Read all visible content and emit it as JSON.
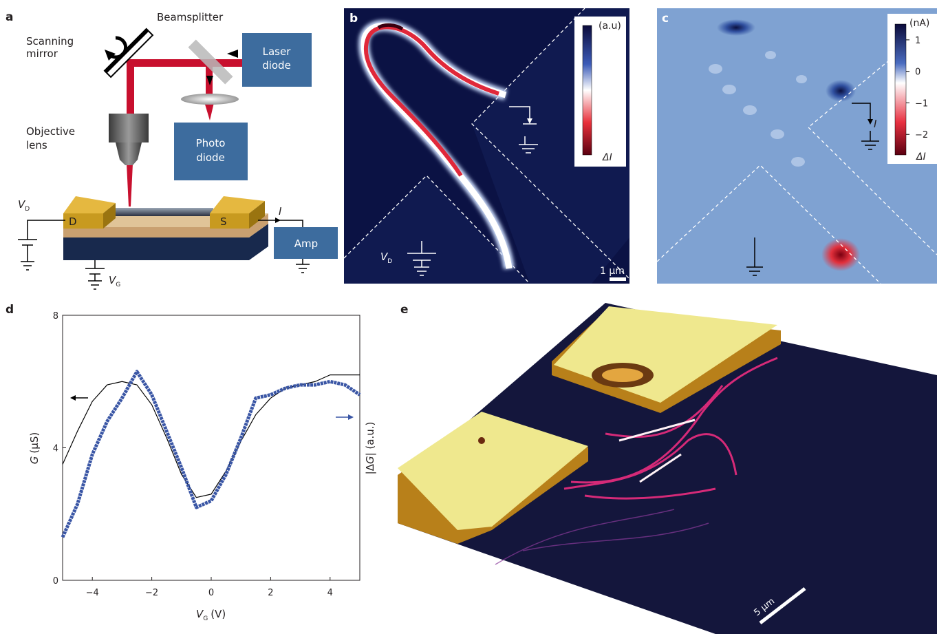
{
  "panel_a": {
    "label": "a",
    "scanning_mirror": [
      "Scanning",
      "mirror"
    ],
    "beamsplitter": "Beamsplitter",
    "laser_diode": [
      "Laser",
      "diode"
    ],
    "photo_diode": [
      "Photo",
      "diode"
    ],
    "objective_lens": [
      "Objective",
      "lens"
    ],
    "drain_voltage": {
      "symbol": "V",
      "sub": "D"
    },
    "drain": "D",
    "source": "S",
    "current": "I",
    "amp": "Amp",
    "gate_voltage": {
      "symbol": "V",
      "sub": "G"
    }
  },
  "panel_b": {
    "label": "b",
    "colorbar_unit": "(a.u)",
    "colorbar_quantity": "ΔI",
    "drain_voltage": {
      "symbol": "V",
      "sub": "D"
    },
    "scale_bar": "1 µm"
  },
  "panel_c": {
    "label": "c",
    "colorbar_unit": "(nA)",
    "colorbar_range": [
      -2.65,
      1.5
    ],
    "colorbar_ticks": [
      1,
      0,
      {
        "value": -1,
        "label": "−1"
      },
      {
        "value": -2,
        "label": "−2"
      }
    ],
    "current": "I",
    "colorbar_quantity": "ΔI"
  },
  "chart_data": {
    "type": "line",
    "panel_label": "d",
    "xlabel": {
      "symbol": "V",
      "sub": "G",
      "unit": "(V)"
    },
    "ylabel": {
      "symbol": "G",
      "unit": "(µS)"
    },
    "y2label": {
      "pre": "|Δ",
      "symbol": "G",
      "post": "| (a.u.)"
    },
    "x": [
      -5,
      -4.5,
      -4,
      -3.5,
      -3,
      -2.5,
      -2,
      -1.5,
      -1,
      -0.5,
      0,
      0.5,
      1,
      1.5,
      2,
      2.5,
      3,
      3.5,
      4,
      4.5,
      5
    ],
    "series": [
      {
        "color": "#000000",
        "values": [
          3.5,
          4.5,
          5.4,
          5.9,
          6.0,
          5.9,
          5.3,
          4.3,
          3.2,
          2.5,
          2.6,
          3.3,
          4.2,
          5.0,
          5.5,
          5.8,
          5.9,
          6.0,
          6.2,
          6.2,
          6.2
        ]
      },
      {
        "color": "#3a56a5",
        "values": [
          1.3,
          2.3,
          3.8,
          4.8,
          5.5,
          6.3,
          5.6,
          4.5,
          3.4,
          2.2,
          2.4,
          3.2,
          4.3,
          5.5,
          5.6,
          5.8,
          5.9,
          5.9,
          6.0,
          5.9,
          5.6
        ]
      }
    ],
    "xlim": [
      -5,
      5
    ],
    "ylim": [
      0,
      8
    ],
    "xticks": [
      {
        "value": -4,
        "label": "−4"
      },
      {
        "value": -2,
        "label": "−2"
      },
      0,
      2,
      4
    ],
    "yticks": [
      0,
      4,
      8
    ]
  },
  "panel_e": {
    "label": "e",
    "scale_bar": "5 µm"
  }
}
